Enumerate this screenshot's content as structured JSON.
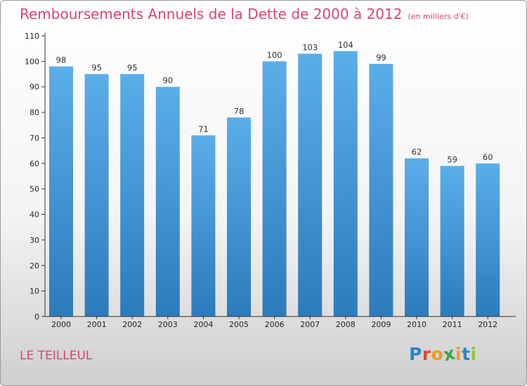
{
  "chart_data": {
    "type": "bar",
    "title": "Remboursements Annuels de la Dette de 2000 à 2012",
    "subtitle": "(en milliers d'€)",
    "categories": [
      "2000",
      "2001",
      "2002",
      "2003",
      "2004",
      "2005",
      "2006",
      "2007",
      "2008",
      "2009",
      "2010",
      "2011",
      "2012"
    ],
    "values": [
      98,
      95,
      95,
      90,
      71,
      78,
      100,
      103,
      104,
      99,
      62,
      59,
      60
    ],
    "ylim": [
      0,
      110
    ],
    "yticks": [
      0,
      10,
      20,
      30,
      40,
      50,
      60,
      70,
      80,
      90,
      100,
      110
    ],
    "xlabel": "",
    "ylabel": "",
    "grid": false,
    "bar_color_top": "#5aaee8",
    "bar_color_bottom": "#2c7bbd"
  },
  "footer": {
    "commune": "LE TEILLEUL",
    "logo_letters": [
      "P",
      "r",
      "o",
      "x",
      "i",
      "t",
      "i"
    ],
    "logo_colors": [
      "#2b86c8",
      "#e8412f",
      "#f39a1e",
      "#3aa845",
      "#f39a1e",
      "#2b86c8",
      "#8cc63f"
    ]
  },
  "colors": {
    "title": "#d8456f",
    "axis": "#333333"
  }
}
